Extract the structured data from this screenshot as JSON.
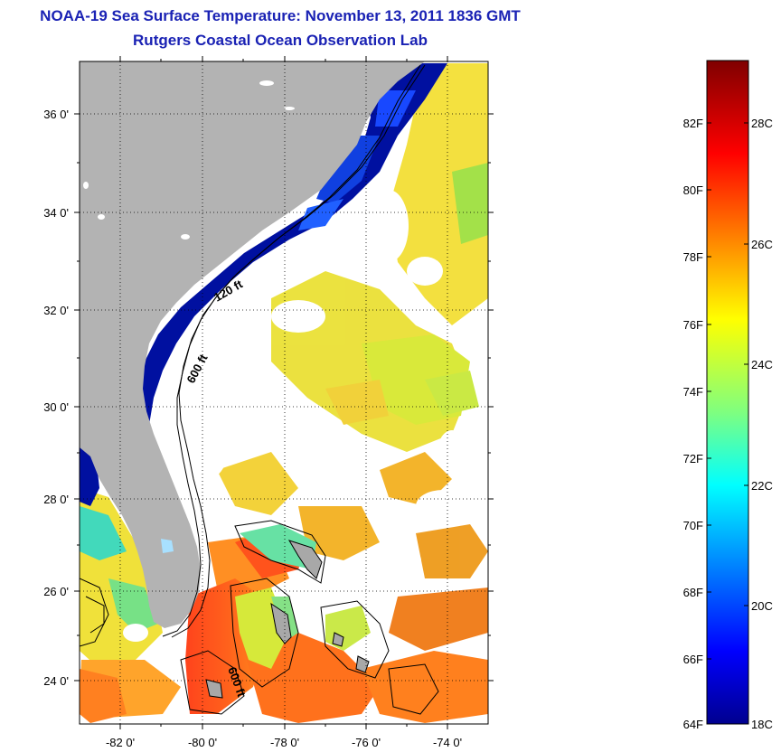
{
  "header": {
    "title": "NOAA-19 Sea Surface Temperature:  November 13, 2011 1836 GMT",
    "subtitle": "Rutgers Coastal Ocean Observation Lab"
  },
  "map": {
    "lat_ticks": [
      "36 0'",
      "34 0'",
      "32 0'",
      "30 0'",
      "28 0'",
      "26 0'",
      "24 0'"
    ],
    "lon_ticks": [
      "-82 0'",
      "-80 0'",
      "-78 0'",
      "-76 0'",
      "-74 0'"
    ],
    "contour_labels": [
      "120 ft",
      "600 ft",
      "600 ft"
    ],
    "colors": {
      "land": "#b3b3b3",
      "cloud": "#ffffff",
      "cold": "#00008f",
      "warm": "#ff3300"
    }
  },
  "colorbar": {
    "fahrenheit_labels": [
      "82F",
      "80F",
      "78F",
      "76F",
      "74F",
      "72F",
      "70F",
      "68F",
      "66F",
      "64F"
    ],
    "celsius_labels": [
      "28C",
      "26C",
      "24C",
      "22C",
      "20C",
      "18C"
    ]
  }
}
